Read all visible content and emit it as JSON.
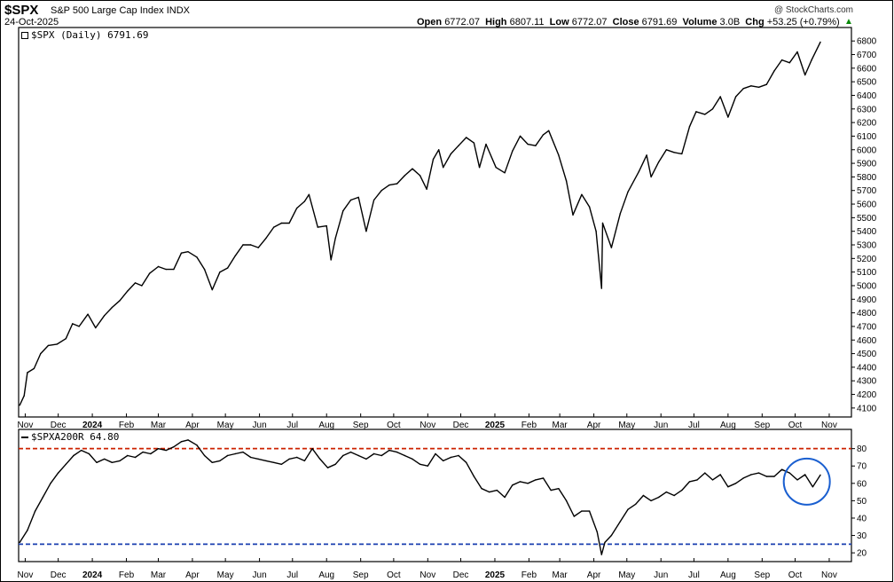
{
  "header": {
    "symbol": "$SPX",
    "name": "S&P 500 Large Cap Index",
    "exchange": "INDX",
    "date": "24-Oct-2025",
    "credit": "@ StockCharts.com",
    "open_label": "Open",
    "open": "6772.07",
    "high_label": "High",
    "high": "6807.11",
    "low_label": "Low",
    "low": "6772.07",
    "close_label": "Close",
    "close": "6791.69",
    "volume_label": "Volume",
    "volume": "3.0B",
    "chg_label": "Chg",
    "chg": "+53.25 (+0.79%)",
    "up_arrow": "▲"
  },
  "colors": {
    "price_line": "#000000",
    "indicator_line": "#000000",
    "upper_ref": "#cc2200",
    "lower_ref": "#1a3fb0",
    "highlight_circle": "#1a5fd0"
  },
  "chart_data": [
    {
      "type": "line",
      "legend": "$SPX (Daily) 6791.69",
      "x_tick_labels": [
        "Nov",
        "Dec",
        "2024",
        "Feb",
        "Mar",
        "Apr",
        "May",
        "Jun",
        "Jul",
        "Aug",
        "Sep",
        "Oct",
        "Nov",
        "Dec",
        "2025",
        "Feb",
        "Mar",
        "Apr",
        "May",
        "Jun",
        "Jul",
        "Aug",
        "Sep",
        "Oct",
        "Nov"
      ],
      "y_ticks": [
        4100,
        4200,
        4300,
        4400,
        4500,
        4600,
        4700,
        4800,
        4900,
        5000,
        5100,
        5200,
        5300,
        5400,
        5500,
        5600,
        5700,
        5800,
        5900,
        6000,
        6100,
        6200,
        6300,
        6400,
        6500,
        6600,
        6700,
        6800
      ],
      "ylim": [
        4060,
        6860
      ],
      "x": [
        "2023-10-27",
        "2023-10-31",
        "2023-11-03",
        "2023-11-09",
        "2023-11-15",
        "2023-11-22",
        "2023-11-30",
        "2023-12-08",
        "2023-12-14",
        "2023-12-20",
        "2023-12-28",
        "2024-01-04",
        "2024-01-12",
        "2024-01-19",
        "2024-01-26",
        "2024-02-02",
        "2024-02-09",
        "2024-02-15",
        "2024-02-22",
        "2024-03-01",
        "2024-03-08",
        "2024-03-15",
        "2024-03-22",
        "2024-03-28",
        "2024-04-05",
        "2024-04-12",
        "2024-04-19",
        "2024-04-26",
        "2024-05-03",
        "2024-05-10",
        "2024-05-17",
        "2024-05-24",
        "2024-05-31",
        "2024-06-07",
        "2024-06-14",
        "2024-06-21",
        "2024-06-28",
        "2024-07-05",
        "2024-07-12",
        "2024-07-16",
        "2024-07-24",
        "2024-08-01",
        "2024-08-05",
        "2024-08-09",
        "2024-08-16",
        "2024-08-23",
        "2024-08-30",
        "2024-09-06",
        "2024-09-13",
        "2024-09-20",
        "2024-09-27",
        "2024-10-04",
        "2024-10-11",
        "2024-10-18",
        "2024-10-25",
        "2024-10-31",
        "2024-11-06",
        "2024-11-11",
        "2024-11-15",
        "2024-11-22",
        "2024-11-29",
        "2024-12-06",
        "2024-12-13",
        "2024-12-18",
        "2024-12-24",
        "2025-01-02",
        "2025-01-10",
        "2025-01-17",
        "2025-01-24",
        "2025-01-31",
        "2025-02-07",
        "2025-02-14",
        "2025-02-19",
        "2025-02-28",
        "2025-03-07",
        "2025-03-13",
        "2025-03-21",
        "2025-03-28",
        "2025-04-03",
        "2025-04-08",
        "2025-04-09",
        "2025-04-17",
        "2025-04-25",
        "2025-05-02",
        "2025-05-12",
        "2025-05-19",
        "2025-05-23",
        "2025-05-30",
        "2025-06-06",
        "2025-06-13",
        "2025-06-20",
        "2025-06-27",
        "2025-07-03",
        "2025-07-11",
        "2025-07-18",
        "2025-07-25",
        "2025-08-01",
        "2025-08-08",
        "2025-08-15",
        "2025-08-22",
        "2025-08-29",
        "2025-09-05",
        "2025-09-12",
        "2025-09-19",
        "2025-09-26",
        "2025-10-03",
        "2025-10-10",
        "2025-10-16",
        "2025-10-24"
      ],
      "values": [
        4120,
        4190,
        4360,
        4390,
        4500,
        4560,
        4570,
        4610,
        4720,
        4700,
        4790,
        4690,
        4780,
        4840,
        4890,
        4960,
        5020,
        5000,
        5090,
        5140,
        5120,
        5120,
        5240,
        5250,
        5210,
        5120,
        4970,
        5100,
        5130,
        5220,
        5300,
        5300,
        5280,
        5350,
        5430,
        5460,
        5460,
        5570,
        5620,
        5670,
        5430,
        5440,
        5190,
        5350,
        5550,
        5630,
        5650,
        5400,
        5630,
        5700,
        5740,
        5750,
        5810,
        5860,
        5810,
        5710,
        5930,
        6000,
        5870,
        5970,
        6030,
        6090,
        6050,
        5870,
        6040,
        5870,
        5830,
        5990,
        6100,
        6040,
        6030,
        6110,
        6140,
        5960,
        5770,
        5520,
        5670,
        5580,
        5400,
        4980,
        5460,
        5280,
        5530,
        5690,
        5840,
        5960,
        5800,
        5910,
        6000,
        5980,
        5970,
        6170,
        6280,
        6260,
        6300,
        6390,
        6240,
        6390,
        6450,
        6470,
        6460,
        6480,
        6580,
        6660,
        6640,
        6720,
        6550,
        6660,
        6792
      ]
    },
    {
      "type": "line",
      "legend": "$SPXA200R 64.80",
      "x_tick_labels": [
        "Nov",
        "Dec",
        "2024",
        "Feb",
        "Mar",
        "Apr",
        "May",
        "Jun",
        "Jul",
        "Aug",
        "Sep",
        "Oct",
        "Nov",
        "Dec",
        "2025",
        "Feb",
        "Mar",
        "Apr",
        "May",
        "Jun",
        "Jul",
        "Aug",
        "Sep",
        "Oct",
        "Nov"
      ],
      "y_ticks": [
        20,
        30,
        40,
        50,
        60,
        70,
        80
      ],
      "ylim": [
        17,
        88
      ],
      "reference_lines": [
        80,
        25
      ],
      "x": [
        "2023-10-27",
        "2023-11-03",
        "2023-11-10",
        "2023-11-17",
        "2023-11-24",
        "2023-12-01",
        "2023-12-08",
        "2023-12-15",
        "2023-12-22",
        "2023-12-29",
        "2024-01-05",
        "2024-01-12",
        "2024-01-19",
        "2024-01-26",
        "2024-02-02",
        "2024-02-09",
        "2024-02-16",
        "2024-02-23",
        "2024-03-01",
        "2024-03-08",
        "2024-03-15",
        "2024-03-22",
        "2024-03-28",
        "2024-04-05",
        "2024-04-12",
        "2024-04-19",
        "2024-04-26",
        "2024-05-03",
        "2024-05-10",
        "2024-05-17",
        "2024-05-24",
        "2024-05-31",
        "2024-06-07",
        "2024-06-14",
        "2024-06-21",
        "2024-06-28",
        "2024-07-05",
        "2024-07-12",
        "2024-07-19",
        "2024-07-26",
        "2024-08-02",
        "2024-08-09",
        "2024-08-16",
        "2024-08-23",
        "2024-08-30",
        "2024-09-06",
        "2024-09-13",
        "2024-09-20",
        "2024-09-27",
        "2024-10-04",
        "2024-10-11",
        "2024-10-18",
        "2024-10-25",
        "2024-11-01",
        "2024-11-08",
        "2024-11-15",
        "2024-11-22",
        "2024-11-29",
        "2024-12-06",
        "2024-12-13",
        "2024-12-20",
        "2024-12-27",
        "2025-01-03",
        "2025-01-10",
        "2025-01-17",
        "2025-01-24",
        "2025-01-31",
        "2025-02-07",
        "2025-02-14",
        "2025-02-21",
        "2025-02-28",
        "2025-03-07",
        "2025-03-14",
        "2025-03-21",
        "2025-03-28",
        "2025-04-04",
        "2025-04-08",
        "2025-04-11",
        "2025-04-17",
        "2025-04-25",
        "2025-05-02",
        "2025-05-09",
        "2025-05-16",
        "2025-05-23",
        "2025-05-30",
        "2025-06-06",
        "2025-06-13",
        "2025-06-20",
        "2025-06-27",
        "2025-07-04",
        "2025-07-11",
        "2025-07-18",
        "2025-07-25",
        "2025-08-01",
        "2025-08-08",
        "2025-08-15",
        "2025-08-22",
        "2025-08-29",
        "2025-09-05",
        "2025-09-12",
        "2025-09-19",
        "2025-09-26",
        "2025-10-03",
        "2025-10-10",
        "2025-10-17",
        "2025-10-24"
      ],
      "values": [
        26,
        33,
        44,
        52,
        60,
        66,
        71,
        76,
        79,
        77,
        72,
        74,
        72,
        73,
        76,
        75,
        78,
        77,
        80,
        79,
        81,
        84,
        85,
        82,
        76,
        72,
        73,
        76,
        77,
        78,
        75,
        74,
        73,
        72,
        71,
        74,
        75,
        73,
        80,
        74,
        69,
        71,
        76,
        78,
        76,
        74,
        77,
        76,
        79,
        78,
        76,
        74,
        71,
        70,
        77,
        73,
        75,
        76,
        72,
        64,
        57,
        55,
        56,
        52,
        59,
        61,
        60,
        62,
        63,
        56,
        57,
        50,
        41,
        44,
        44,
        32,
        19,
        26,
        30,
        38,
        45,
        48,
        53,
        50,
        52,
        55,
        53,
        56,
        61,
        62,
        66,
        62,
        65,
        58,
        60,
        63,
        65,
        66,
        64,
        64,
        68,
        66,
        62,
        65,
        58,
        64.8
      ]
    }
  ]
}
